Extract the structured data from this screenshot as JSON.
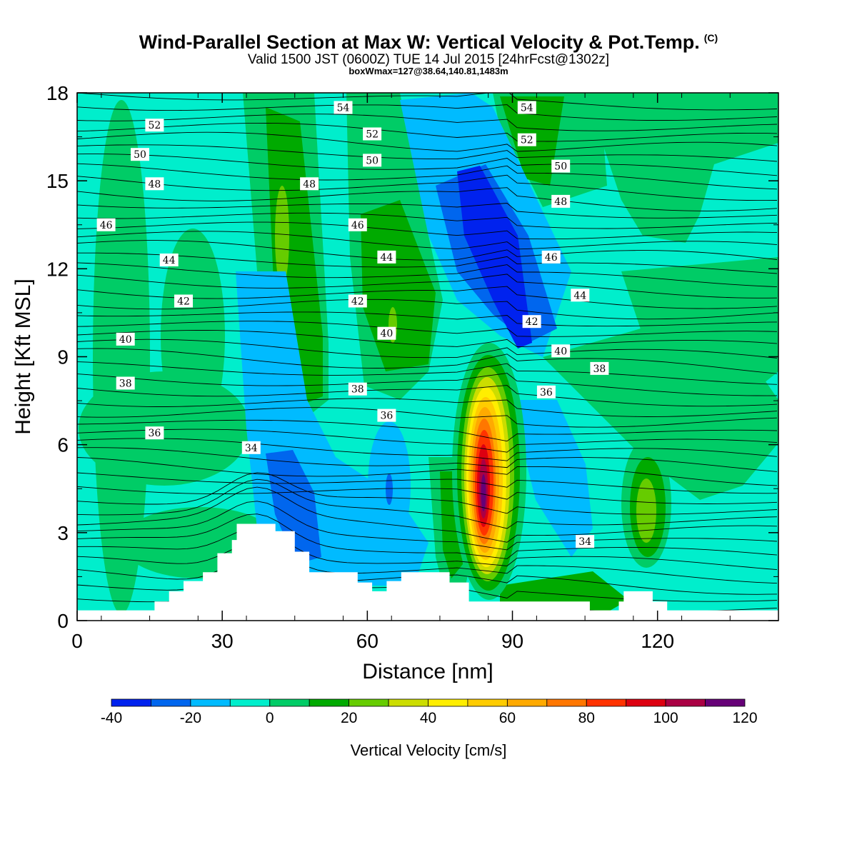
{
  "header": {
    "title": "Wind-Parallel Section at Max W: Vertical Velocity & Pot.Temp.",
    "copyright": "(C)",
    "valid_line": "Valid 1500 JST (0600Z) TUE 14 Jul 2015 [24hrFcst@1302z]",
    "box_line": "boxWmax=127@38.64,140.81,1483m"
  },
  "chart_data": {
    "type": "heatmap",
    "title": "Wind-Parallel Section at Max W: Vertical Velocity & Pot.Temp.",
    "xlabel": "Distance [nm]",
    "ylabel": "Height [Kft MSL]",
    "xlim": [
      0,
      145
    ],
    "ylim": [
      0,
      18
    ],
    "x_ticks": [
      "0",
      "30",
      "60",
      "90",
      "120"
    ],
    "y_ticks": [
      "0",
      "3",
      "6",
      "9",
      "12",
      "15",
      "18"
    ],
    "colorbar": {
      "title": "Vertical Velocity [cm/s]",
      "bounds": [
        -40,
        -30,
        -20,
        -10,
        0,
        10,
        20,
        30,
        40,
        50,
        60,
        70,
        80,
        90,
        100,
        110,
        120
      ],
      "tick_labels": [
        "-40",
        "-20",
        "0",
        "20",
        "40",
        "60",
        "80",
        "100",
        "120"
      ],
      "colors": [
        "#0022ee",
        "#0066ee",
        "#00bbff",
        "#00eecc",
        "#00cc66",
        "#00aa00",
        "#66cc00",
        "#ccdd00",
        "#ffee00",
        "#ffcc00",
        "#ffaa00",
        "#ff7700",
        "#ff3300",
        "#dd0011",
        "#aa0044",
        "#660077"
      ]
    },
    "w_features": [
      {
        "x": 84,
        "y": 4.6,
        "w": 120,
        "kind": "updraft maximum"
      },
      {
        "x": 71,
        "y": 13.4,
        "w": -30,
        "kind": "downdraft band"
      },
      {
        "x": 44,
        "y": 4.2,
        "w": -30,
        "kind": "downdraft lee"
      },
      {
        "x": 118,
        "y": 4.0,
        "w": 30,
        "kind": "updraft"
      },
      {
        "x": 42,
        "y": 13.0,
        "w": 30,
        "kind": "updraft band"
      }
    ],
    "terrain_steps": [
      [
        0,
        0.35
      ],
      [
        16,
        0.35
      ],
      [
        16,
        0.65
      ],
      [
        19,
        0.65
      ],
      [
        19,
        1.0
      ],
      [
        22,
        1.0
      ],
      [
        22,
        1.35
      ],
      [
        26,
        1.35
      ],
      [
        26,
        1.65
      ],
      [
        29,
        1.65
      ],
      [
        29,
        2.3
      ],
      [
        32,
        2.3
      ],
      [
        32,
        2.75
      ],
      [
        33,
        2.75
      ],
      [
        33,
        3.3
      ],
      [
        41,
        3.3
      ],
      [
        41,
        3.05
      ],
      [
        45,
        3.05
      ],
      [
        45,
        2.35
      ],
      [
        48,
        2.35
      ],
      [
        48,
        1.65
      ],
      [
        58,
        1.65
      ],
      [
        58,
        1.3
      ],
      [
        61,
        1.3
      ],
      [
        61,
        1.0
      ],
      [
        64,
        1.0
      ],
      [
        64,
        1.35
      ],
      [
        67,
        1.35
      ],
      [
        67,
        1.65
      ],
      [
        77,
        1.65
      ],
      [
        77,
        1.3
      ],
      [
        81,
        1.3
      ],
      [
        81,
        0.65
      ],
      [
        106,
        0.65
      ],
      [
        106,
        0.35
      ],
      [
        112,
        0.35
      ],
      [
        112,
        0.65
      ],
      [
        113,
        0.65
      ],
      [
        113,
        1.0
      ],
      [
        119,
        1.0
      ],
      [
        119,
        0.65
      ],
      [
        122,
        0.65
      ],
      [
        122,
        0.35
      ],
      [
        145,
        0.35
      ]
    ],
    "isentropes": {
      "units": "C",
      "labels": [
        {
          "text": "54",
          "x": 55,
          "y": 17.5
        },
        {
          "text": "54",
          "x": 93,
          "y": 17.5
        },
        {
          "text": "52",
          "x": 16,
          "y": 16.9
        },
        {
          "text": "52",
          "x": 61,
          "y": 16.6
        },
        {
          "text": "52",
          "x": 93,
          "y": 16.4
        },
        {
          "text": "50",
          "x": 13,
          "y": 15.9
        },
        {
          "text": "50",
          "x": 61,
          "y": 15.7
        },
        {
          "text": "50",
          "x": 100,
          "y": 15.5
        },
        {
          "text": "48",
          "x": 16,
          "y": 14.9
        },
        {
          "text": "48",
          "x": 48,
          "y": 14.9
        },
        {
          "text": "48",
          "x": 100,
          "y": 14.3
        },
        {
          "text": "46",
          "x": 6,
          "y": 13.5
        },
        {
          "text": "46",
          "x": 58,
          "y": 13.5
        },
        {
          "text": "46",
          "x": 98,
          "y": 12.4
        },
        {
          "text": "44",
          "x": 19,
          "y": 12.3
        },
        {
          "text": "44",
          "x": 64,
          "y": 12.4
        },
        {
          "text": "44",
          "x": 104,
          "y": 11.1
        },
        {
          "text": "42",
          "x": 22,
          "y": 10.9
        },
        {
          "text": "42",
          "x": 58,
          "y": 10.9
        },
        {
          "text": "42",
          "x": 94,
          "y": 10.2
        },
        {
          "text": "40",
          "x": 10,
          "y": 9.6
        },
        {
          "text": "40",
          "x": 64,
          "y": 9.8
        },
        {
          "text": "40",
          "x": 100,
          "y": 9.2
        },
        {
          "text": "38",
          "x": 10,
          "y": 8.1
        },
        {
          "text": "38",
          "x": 58,
          "y": 7.9
        },
        {
          "text": "38",
          "x": 108,
          "y": 8.6
        },
        {
          "text": "36",
          "x": 16,
          "y": 6.4
        },
        {
          "text": "36",
          "x": 64,
          "y": 7.0
        },
        {
          "text": "36",
          "x": 97,
          "y": 7.8
        },
        {
          "text": "34",
          "x": 36,
          "y": 5.9
        },
        {
          "text": "34",
          "x": 105,
          "y": 2.7
        }
      ]
    }
  }
}
